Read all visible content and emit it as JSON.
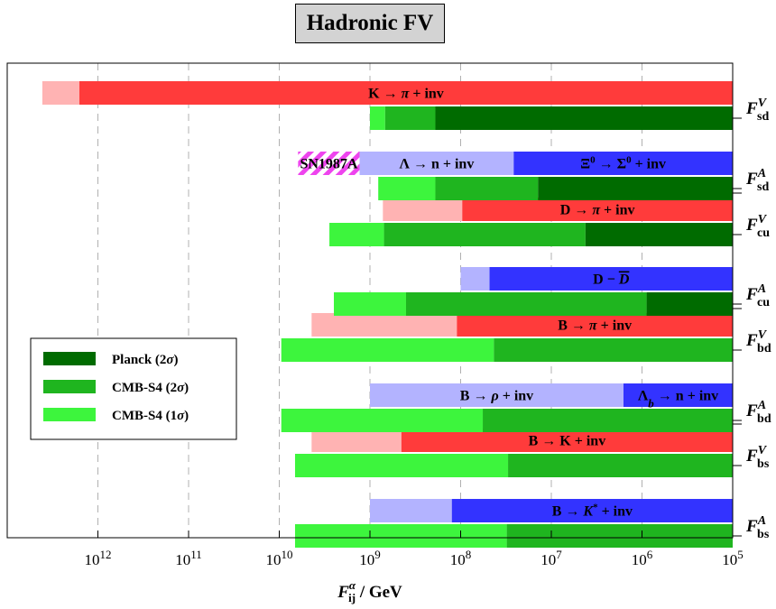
{
  "title": "Hadronic FV",
  "chart_data": {
    "type": "bar",
    "orientation": "horizontal",
    "x_scale": "log",
    "x_reversed": true,
    "xlabel_main": "F",
    "xlabel_sup": "α",
    "xlabel_sub": "ij",
    "xlabel_rest": " / GeV",
    "xlim": [
      10000000000000.0,
      100000.0
    ],
    "x_ticks": [
      {
        "value": 1000000000000.0,
        "base": "10",
        "exp": "12"
      },
      {
        "value": 100000000000.0,
        "base": "10",
        "exp": "11"
      },
      {
        "value": 10000000000.0,
        "base": "10",
        "exp": "10"
      },
      {
        "value": 1000000000.0,
        "base": "10",
        "exp": "9"
      },
      {
        "value": 100000000.0,
        "base": "10",
        "exp": "8"
      },
      {
        "value": 10000000.0,
        "base": "10",
        "exp": "7"
      },
      {
        "value": 1000000.0,
        "base": "10",
        "exp": "6"
      },
      {
        "value": 100000.0,
        "base": "10",
        "exp": "5"
      }
    ],
    "grid": "vertical dashed",
    "colors": {
      "vector_light": "#ffb3b3",
      "vector_dark": "#ff3b3b",
      "axial_light": "#b3b3ff",
      "axial_dark": "#3333ff",
      "planck": "#006b00",
      "cmbs4_2sigma": "#1fb51f",
      "cmbs4_1sigma": "#3df53d",
      "sn_hatch_a": "#ee44ee",
      "sn_hatch_b": "#ffffff"
    },
    "rows": [
      {
        "main": "F",
        "sup": "V",
        "sub": "sd"
      },
      {
        "main": "F",
        "sup": "A",
        "sub": "sd"
      },
      {
        "main": "F",
        "sup": "V",
        "sub": "cu"
      },
      {
        "main": "F",
        "sup": "A",
        "sub": "cu"
      },
      {
        "main": "F",
        "sup": "V",
        "sub": "bd"
      },
      {
        "main": "F",
        "sup": "A",
        "sub": "bd"
      },
      {
        "main": "F",
        "sup": "V",
        "sub": "bs"
      },
      {
        "main": "F",
        "sup": "A",
        "sub": "bs"
      }
    ],
    "bounds": [
      {
        "row": 0,
        "kind": "vector",
        "segments": [
          {
            "from": 4100000000000.0,
            "to": 1600000000000.0,
            "color": "vector_light"
          },
          {
            "from": 1600000000000.0,
            "to": 100000.0,
            "color": "vector_dark",
            "label": [
              "K → ",
              {
                "i": "π"
              },
              " + inv"
            ]
          }
        ]
      },
      {
        "row": 1,
        "kind": "axial",
        "segments": [
          {
            "from": 6200000000.0,
            "to": 1300000000.0,
            "color": "sn_hatch",
            "label": [
              "SN1987A"
            ],
            "label_color": "#000"
          },
          {
            "from": 1300000000.0,
            "to": 26000000.0,
            "color": "axial_light",
            "label": [
              "Λ → n + inv"
            ]
          },
          {
            "from": 26000000.0,
            "to": 100000.0,
            "color": "axial_dark",
            "label": [
              "Ξ",
              {
                "sup": "0"
              },
              " → Σ",
              {
                "sup": "0"
              },
              " + inv"
            ]
          }
        ]
      },
      {
        "row": 2,
        "kind": "vector",
        "segments": [
          {
            "from": 720000000.0,
            "to": 96000000.0,
            "color": "vector_light"
          },
          {
            "from": 96000000.0,
            "to": 100000.0,
            "color": "vector_dark",
            "label": [
              "D → ",
              {
                "i": "π"
              },
              " + inv"
            ]
          }
        ]
      },
      {
        "row": 3,
        "kind": "axial",
        "segments": [
          {
            "from": 100000000.0,
            "to": 48000000.0,
            "color": "axial_light"
          },
          {
            "from": 48000000.0,
            "to": 100000.0,
            "color": "axial_dark",
            "label": [
              "D − ",
              {
                "ob": "D"
              }
            ]
          }
        ]
      },
      {
        "row": 4,
        "kind": "vector",
        "segments": [
          {
            "from": 4400000000.0,
            "to": 110000000.0,
            "color": "vector_light"
          },
          {
            "from": 110000000.0,
            "to": 100000.0,
            "color": "vector_dark",
            "label": [
              "B → ",
              {
                "i": "π"
              },
              " + inv"
            ]
          }
        ]
      },
      {
        "row": 5,
        "kind": "axial",
        "segments": [
          {
            "from": 1000000000.0,
            "to": 1600000.0,
            "color": "axial_light",
            "label": [
              "B → ",
              {
                "i": "ρ"
              },
              " + inv"
            ]
          },
          {
            "from": 1600000.0,
            "to": 100000.0,
            "color": "axial_dark",
            "label": [
              "Λ",
              {
                "sub": "b"
              },
              " → n + inv"
            ]
          }
        ]
      },
      {
        "row": 6,
        "kind": "vector",
        "segments": [
          {
            "from": 4400000000.0,
            "to": 450000000.0,
            "color": "vector_light"
          },
          {
            "from": 450000000.0,
            "to": 100000.0,
            "color": "vector_dark",
            "label": [
              "B → K + inv"
            ]
          }
        ]
      },
      {
        "row": 7,
        "kind": "axial",
        "segments": [
          {
            "from": 1000000000.0,
            "to": 125000000.0,
            "color": "axial_light"
          },
          {
            "from": 125000000.0,
            "to": 100000.0,
            "color": "axial_dark",
            "label": [
              "B → ",
              {
                "i": "K"
              },
              {
                "sup": "*"
              },
              " + inv"
            ]
          }
        ]
      }
    ],
    "cosmology": [
      {
        "row": 0,
        "segments": [
          {
            "from": 1000000000.0,
            "to": 680000000.0,
            "color": "cmbs4_1sigma"
          },
          {
            "from": 680000000.0,
            "to": 190000000.0,
            "color": "cmbs4_2sigma"
          },
          {
            "from": 190000000.0,
            "to": 100000.0,
            "color": "planck"
          }
        ]
      },
      {
        "row": 1,
        "segments": [
          {
            "from": 810000000.0,
            "to": 190000000.0,
            "color": "cmbs4_1sigma"
          },
          {
            "from": 190000000.0,
            "to": 14000000.0,
            "color": "cmbs4_2sigma"
          },
          {
            "from": 14000000.0,
            "to": 100000.0,
            "color": "planck"
          }
        ]
      },
      {
        "row": 2,
        "segments": [
          {
            "from": 2800000000.0,
            "to": 700000000.0,
            "color": "cmbs4_1sigma"
          },
          {
            "from": 700000000.0,
            "to": 4200000.0,
            "color": "cmbs4_2sigma"
          },
          {
            "from": 4200000.0,
            "to": 100000.0,
            "color": "planck"
          }
        ]
      },
      {
        "row": 3,
        "segments": [
          {
            "from": 2500000000.0,
            "to": 400000000.0,
            "color": "cmbs4_1sigma"
          },
          {
            "from": 400000000.0,
            "to": 890000.0,
            "color": "cmbs4_2sigma"
          },
          {
            "from": 890000.0,
            "to": 100000.0,
            "color": "planck"
          }
        ]
      },
      {
        "row": 4,
        "segments": [
          {
            "from": 9500000000.0,
            "to": 43000000.0,
            "color": "cmbs4_1sigma"
          },
          {
            "from": 43000000.0,
            "to": 100000.0,
            "color": "cmbs4_2sigma"
          }
        ]
      },
      {
        "row": 5,
        "segments": [
          {
            "from": 9500000000.0,
            "to": 57000000.0,
            "color": "cmbs4_1sigma"
          },
          {
            "from": 57000000.0,
            "to": 100000.0,
            "color": "cmbs4_2sigma"
          }
        ]
      },
      {
        "row": 6,
        "segments": [
          {
            "from": 6700000000.0,
            "to": 30000000.0,
            "color": "cmbs4_1sigma"
          },
          {
            "from": 30000000.0,
            "to": 100000.0,
            "color": "cmbs4_2sigma"
          }
        ]
      },
      {
        "row": 7,
        "segments": [
          {
            "from": 6700000000.0,
            "to": 31000000.0,
            "color": "cmbs4_1sigma"
          },
          {
            "from": 31000000.0,
            "to": 100000.0,
            "color": "cmbs4_2sigma"
          }
        ]
      }
    ],
    "legend": {
      "position": "left",
      "items": [
        {
          "label": "Planck (2",
          "sym": "σ",
          "tail": ")",
          "color": "planck"
        },
        {
          "label": "CMB-S4 (2",
          "sym": "σ",
          "tail": ")",
          "color": "cmbs4_2sigma"
        },
        {
          "label": "CMB-S4 (1",
          "sym": "σ",
          "tail": ")",
          "color": "cmbs4_1sigma"
        }
      ]
    }
  }
}
